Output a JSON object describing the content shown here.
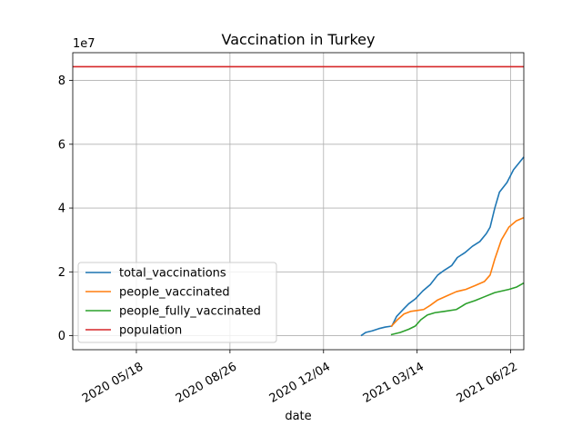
{
  "chart_data": {
    "type": "line",
    "title": "Vaccination in Turkey",
    "xlabel": "date",
    "ylabel": "",
    "y_scale_label": "1e7",
    "xlim": [
      "2020-03-11",
      "2021-07-06"
    ],
    "ylim": [
      -4400000,
      88700000
    ],
    "y_ticks": [
      0,
      20000000,
      40000000,
      60000000,
      80000000
    ],
    "y_tick_labels": [
      "0",
      "2",
      "4",
      "6",
      "8"
    ],
    "x_ticks": [
      "2020-05-18",
      "2020-08-26",
      "2020-12-04",
      "2021-03-14",
      "2021-06-22"
    ],
    "x_tick_labels": [
      "2020 05/18",
      "2020 08/26",
      "2020 12/04",
      "2021 03/14",
      "2021 06/22"
    ],
    "grid": true,
    "legend_position": "lower-left",
    "series": [
      {
        "name": "total_vaccinations",
        "color": "#1f77b4",
        "points": [
          [
            "2021-01-13",
            0
          ],
          [
            "2021-01-18",
            1000000
          ],
          [
            "2021-01-25",
            1500000
          ],
          [
            "2021-02-01",
            2200000
          ],
          [
            "2021-02-08",
            2700000
          ],
          [
            "2021-02-15",
            3000000
          ],
          [
            "2021-02-20",
            6000000
          ],
          [
            "2021-02-28",
            8500000
          ],
          [
            "2021-03-05",
            10000000
          ],
          [
            "2021-03-12",
            11500000
          ],
          [
            "2021-03-20",
            14000000
          ],
          [
            "2021-03-28",
            16000000
          ],
          [
            "2021-04-05",
            19000000
          ],
          [
            "2021-04-12",
            20500000
          ],
          [
            "2021-04-20",
            22000000
          ],
          [
            "2021-04-26",
            24500000
          ],
          [
            "2021-05-04",
            26000000
          ],
          [
            "2021-05-12",
            28000000
          ],
          [
            "2021-05-20",
            29500000
          ],
          [
            "2021-05-27",
            32000000
          ],
          [
            "2021-05-31",
            34000000
          ],
          [
            "2021-06-05",
            40000000
          ],
          [
            "2021-06-10",
            45000000
          ],
          [
            "2021-06-18",
            48000000
          ],
          [
            "2021-06-25",
            52000000
          ],
          [
            "2021-07-06",
            56000000
          ]
        ]
      },
      {
        "name": "people_vaccinated",
        "color": "#ff7f0e",
        "points": [
          [
            "2021-02-14",
            2800000
          ],
          [
            "2021-02-21",
            5000000
          ],
          [
            "2021-02-28",
            6800000
          ],
          [
            "2021-03-07",
            7600000
          ],
          [
            "2021-03-14",
            7900000
          ],
          [
            "2021-03-21",
            8200000
          ],
          [
            "2021-03-28",
            9500000
          ],
          [
            "2021-04-05",
            11200000
          ],
          [
            "2021-04-15",
            12500000
          ],
          [
            "2021-04-25",
            13800000
          ],
          [
            "2021-05-05",
            14500000
          ],
          [
            "2021-05-15",
            15700000
          ],
          [
            "2021-05-25",
            17000000
          ],
          [
            "2021-05-31",
            19000000
          ],
          [
            "2021-06-05",
            24000000
          ],
          [
            "2021-06-12",
            30000000
          ],
          [
            "2021-06-20",
            34000000
          ],
          [
            "2021-06-28",
            36000000
          ],
          [
            "2021-07-06",
            37000000
          ]
        ]
      },
      {
        "name": "people_fully_vaccinated",
        "color": "#2ca02c",
        "points": [
          [
            "2021-02-14",
            300000
          ],
          [
            "2021-02-24",
            1000000
          ],
          [
            "2021-03-05",
            2000000
          ],
          [
            "2021-03-12",
            3000000
          ],
          [
            "2021-03-18",
            5000000
          ],
          [
            "2021-03-25",
            6500000
          ],
          [
            "2021-04-02",
            7200000
          ],
          [
            "2021-04-12",
            7600000
          ],
          [
            "2021-04-25",
            8200000
          ],
          [
            "2021-05-05",
            10000000
          ],
          [
            "2021-05-15",
            11000000
          ],
          [
            "2021-05-25",
            12200000
          ],
          [
            "2021-06-05",
            13500000
          ],
          [
            "2021-06-20",
            14500000
          ],
          [
            "2021-06-28",
            15200000
          ],
          [
            "2021-07-06",
            16500000
          ]
        ]
      },
      {
        "name": "population",
        "color": "#d62728",
        "points": [
          [
            "2020-03-11",
            84300000
          ],
          [
            "2021-07-06",
            84300000
          ]
        ]
      }
    ]
  }
}
